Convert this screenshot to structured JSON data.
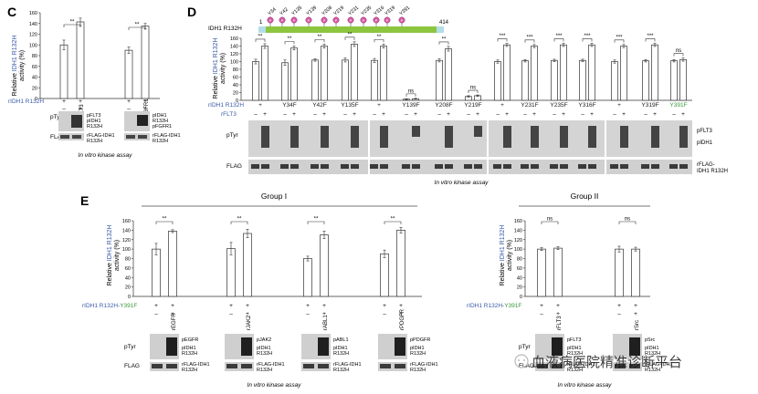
{
  "panel_c": {
    "letter": "C",
    "ylabel_pre": "Relative ",
    "ylabel_hl": "IDH1 R132H",
    "ylabel_post": "activity (%)",
    "ticks": [
      "0",
      "20",
      "40",
      "60",
      "80",
      "100",
      "120",
      "140",
      "160"
    ],
    "sig": [
      "**",
      "**"
    ],
    "row1_label": "rIDH1 R132H",
    "row1_values": [
      "+",
      "+",
      "+",
      "+"
    ],
    "row2_values": [
      "–",
      "+",
      "–",
      "+"
    ],
    "row2_kinases": [
      "rFLT3",
      "rFGFR1"
    ],
    "pty_label": "pTyr",
    "flag_label": "FLAG",
    "blot1_labels": [
      "pFLT3",
      "pIDH1",
      "R132H"
    ],
    "blot2_labels": [
      "pIDH1",
      "R132H",
      "pFGFR1"
    ],
    "flag_labels": [
      "rFLAG-IDH1",
      "R132H"
    ],
    "caption": "In vitro kinase assay"
  },
  "panel_d": {
    "letter": "D",
    "protein_label": "IDH1 R132H",
    "domain_start": "1",
    "domain_end": "414",
    "sites": [
      "Y34",
      "Y42",
      "Y135",
      "Y139",
      "Y208",
      "Y219",
      "Y231",
      "Y235",
      "Y316",
      "Y319",
      "Y391"
    ],
    "ylabel_pre": "Relative ",
    "ylabel_hl": "IDH1 R132H",
    "ylabel_post": "activity (%)",
    "ticks": [
      "0",
      "20",
      "40",
      "60",
      "80",
      "100",
      "120",
      "140",
      "160"
    ],
    "sig": [
      "**",
      "**",
      "**",
      "**",
      "**",
      "ns",
      "**",
      "ns",
      "***",
      "***",
      "***",
      "***",
      "***",
      "***",
      "ns"
    ],
    "row1_label": "rIDH1 R132H",
    "mutants": [
      "+",
      "Y34F",
      "Y42F",
      "Y135F",
      "+",
      "Y139F",
      "Y208F",
      "Y219F",
      "+",
      "Y231F",
      "Y235F",
      "Y316F",
      "+",
      "Y319F",
      "Y391F"
    ],
    "flt3_label": "rFLT3",
    "flt3_values": [
      "–",
      "+"
    ],
    "pty_label": "pTyr",
    "flag_label": "FLAG",
    "pty_right": [
      "pFLT3",
      "pIDH1"
    ],
    "flag_right": [
      "rFLAG-",
      "IDH1 R132H"
    ],
    "caption": "In vitro kinase assay"
  },
  "panel_e": {
    "letter": "E",
    "group1": "Group I",
    "group2": "Group II",
    "ylabel_pre": "Relative ",
    "ylabel_hl": "IDH1 R132H",
    "ylabel_post": "activity (%)",
    "ticks": [
      "0",
      "20",
      "40",
      "60",
      "80",
      "100",
      "120",
      "140",
      "160"
    ],
    "sig1": [
      "**",
      "**",
      "**",
      "**"
    ],
    "sig2": [
      "ns",
      "ns"
    ],
    "row1_label_a": "rIDH1 R132H-",
    "row1_label_b": "Y391F",
    "kinases1": [
      "rEGFR",
      "rJAK2",
      "rABL1",
      "rPDGFR"
    ],
    "kinases2": [
      "rFLT3",
      "rSrc"
    ],
    "plus": "+",
    "minus": "–",
    "pty_label": "pTyr",
    "flag_label": "FLAG",
    "blot_labels": [
      [
        "pEGFR",
        "pIDH1",
        "R132H",
        "rFLAG-IDH1",
        "R132H"
      ],
      [
        "pJAK2",
        "pIDH1",
        "R132H",
        "rFLAG-IDH1",
        "R132H"
      ],
      [
        "pABL1",
        "pIDH1",
        "R132H",
        "rFLAG-IDH1",
        "R132H"
      ],
      [
        "pPDGFR",
        "pIDH1",
        "R132H",
        "rFLAG-IDH1",
        "R132H"
      ],
      [
        "pFLT3",
        "pIDH1",
        "R132H",
        "rFLAG-IDH1",
        "R132H"
      ],
      [
        "pSrc",
        "pIDH1",
        "R132H",
        "rFLAG-IDH1",
        "R132H"
      ]
    ],
    "caption": "In vitro kinase assay"
  },
  "watermark": "血液病医院精准诊断平台",
  "chart_data": [
    {
      "type": "bar",
      "panel": "C",
      "ylim": [
        0,
        160
      ],
      "categories": [
        "–",
        "rFLT3",
        "–",
        "rFGFR1"
      ],
      "values": [
        100,
        143,
        90,
        135
      ],
      "errors": [
        9,
        7,
        6,
        5
      ]
    },
    {
      "type": "bar",
      "panel": "D",
      "ylim": [
        0,
        160
      ],
      "categories": [
        "+",
        "Y34F",
        "Y42F",
        "Y135F",
        "+",
        "Y139F",
        "Y208F",
        "Y219F",
        "+",
        "Y231F",
        "Y235F",
        "Y316F",
        "+",
        "Y319F",
        "Y391F"
      ],
      "series": [
        {
          "values": [
            100,
            97,
            104,
            104,
            103,
            3,
            103,
            10,
            100,
            102,
            103,
            103,
            100,
            102,
            102
          ],
          "errors": [
            6,
            7,
            3,
            5,
            5,
            1,
            4,
            2,
            4,
            3,
            3,
            3,
            4,
            3,
            3
          ]
        },
        {
          "values": [
            140,
            135,
            140,
            145,
            140,
            4,
            133,
            12,
            143,
            140,
            143,
            143,
            140,
            143,
            105
          ],
          "errors": [
            6,
            5,
            5,
            6,
            5,
            1,
            6,
            2,
            4,
            4,
            4,
            4,
            4,
            4,
            4
          ]
        }
      ]
    },
    {
      "type": "bar",
      "panel": "E-I",
      "ylim": [
        0,
        160
      ],
      "categories": [
        "rEGFR",
        "rJAK2",
        "rABL1",
        "rPDGFR"
      ],
      "series": [
        {
          "values": [
            100,
            101,
            80,
            90
          ],
          "errors": [
            12,
            13,
            5,
            8
          ]
        },
        {
          "values": [
            138,
            133,
            130,
            140
          ],
          "errors": [
            3,
            9,
            8,
            6
          ]
        }
      ]
    },
    {
      "type": "bar",
      "panel": "E-II",
      "ylim": [
        0,
        160
      ],
      "categories": [
        "rFLT3",
        "rSrc"
      ],
      "series": [
        {
          "values": [
            100,
            100
          ],
          "errors": [
            3,
            6
          ]
        },
        {
          "values": [
            102,
            100
          ],
          "errors": [
            3,
            4
          ]
        }
      ]
    }
  ]
}
